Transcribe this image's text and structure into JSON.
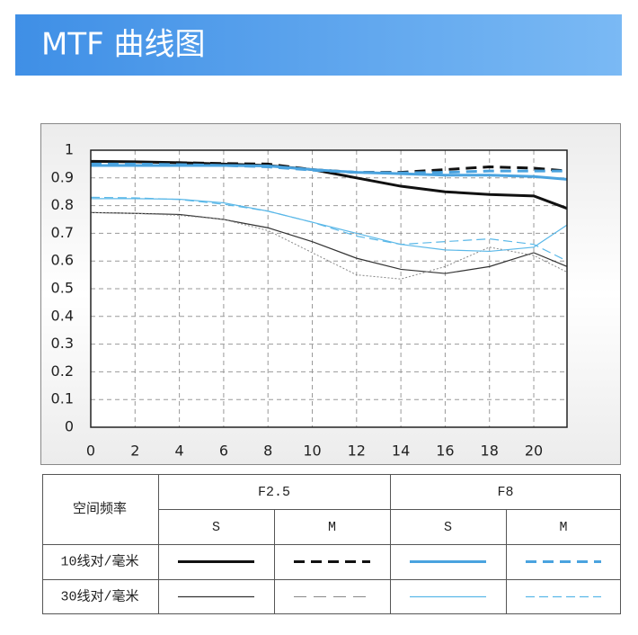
{
  "header": {
    "title": "MTF 曲线图"
  },
  "chart_data": {
    "type": "line",
    "x": [
      0,
      2,
      4,
      6,
      8,
      10,
      12,
      14,
      16,
      18,
      20,
      21.5
    ],
    "xlim": [
      0,
      21.5
    ],
    "ylim": [
      0,
      1
    ],
    "xticks": [
      0,
      2,
      4,
      6,
      8,
      10,
      12,
      14,
      16,
      18,
      20
    ],
    "yticks": [
      0,
      0.1,
      0.2,
      0.3,
      0.4,
      0.5,
      0.6,
      0.7,
      0.8,
      0.9,
      1
    ],
    "grid": true,
    "frequency_header": "空间频率",
    "apertures": [
      "F2.5",
      "F8"
    ],
    "directions": [
      "S",
      "M",
      "S",
      "M"
    ],
    "frequencies": [
      "10线对/毫米",
      "30线对/毫米"
    ],
    "series": [
      {
        "color": "#111111",
        "width": 3,
        "dash": "none",
        "values": [
          0.96,
          0.958,
          0.955,
          0.95,
          0.945,
          0.93,
          0.9,
          0.87,
          0.85,
          0.84,
          0.835,
          0.79
        ]
      },
      {
        "color": "#111111",
        "width": 3,
        "dash": "12,7",
        "values": [
          0.955,
          0.955,
          0.955,
          0.952,
          0.95,
          0.93,
          0.92,
          0.92,
          0.93,
          0.94,
          0.935,
          0.925
        ]
      },
      {
        "color": "#4aa3df",
        "width": 3,
        "dash": "none",
        "values": [
          0.945,
          0.945,
          0.945,
          0.945,
          0.943,
          0.93,
          0.92,
          0.915,
          0.91,
          0.91,
          0.905,
          0.895
        ]
      },
      {
        "color": "#4aa3df",
        "width": 3,
        "dash": "12,7",
        "values": [
          0.95,
          0.95,
          0.948,
          0.945,
          0.94,
          0.928,
          0.92,
          0.918,
          0.92,
          0.925,
          0.925,
          0.925
        ]
      },
      {
        "color": "#333333",
        "width": 1.2,
        "dash": "none",
        "values": [
          0.775,
          0.772,
          0.768,
          0.75,
          0.72,
          0.67,
          0.61,
          0.57,
          0.555,
          0.58,
          0.63,
          0.58
        ]
      },
      {
        "color": "#888888",
        "width": 1,
        "dash": "2,2",
        "values": [
          0.775,
          0.772,
          0.765,
          0.75,
          0.71,
          0.63,
          0.55,
          0.535,
          0.58,
          0.65,
          0.62,
          0.56
        ]
      },
      {
        "color": "#5bb8e8",
        "width": 1.2,
        "dash": "none",
        "values": [
          0.825,
          0.825,
          0.823,
          0.81,
          0.78,
          0.74,
          0.7,
          0.66,
          0.64,
          0.635,
          0.65,
          0.73
        ]
      },
      {
        "color": "#5bb8e8",
        "width": 1.2,
        "dash": "10,5",
        "values": [
          0.83,
          0.828,
          0.822,
          0.805,
          0.78,
          0.74,
          0.69,
          0.66,
          0.67,
          0.68,
          0.66,
          0.6
        ]
      }
    ]
  }
}
